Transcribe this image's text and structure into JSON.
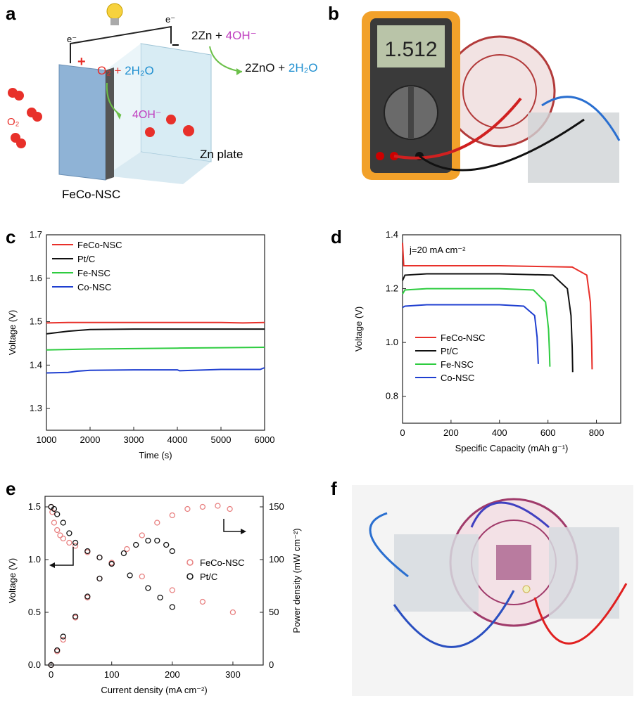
{
  "panels": {
    "a": "a",
    "b": "b",
    "c": "c",
    "d": "d",
    "e": "e",
    "f": "f"
  },
  "schematic": {
    "electron_left": "e⁻",
    "electron_right": "e⁻",
    "plus_sign": "+",
    "minus_sign": "−",
    "o2_label": "O₂",
    "cathode_reaction_part1": "O₂ + ",
    "cathode_reaction_part2": "2H₂O",
    "oh_label": "4OH⁻",
    "anode_reaction_top_part1": "2Zn + ",
    "anode_reaction_top_part2": "4OH⁻",
    "anode_reaction_bottom_part1": "2ZnO + ",
    "anode_reaction_bottom_part2": "2H₂O",
    "zn_plate_label": "Zn plate",
    "electrode_label": "FeCo-NSC"
  },
  "photo_b": {
    "multimeter_reading": "1.512"
  },
  "colors": {
    "red": "#e8302a",
    "black": "#111111",
    "green": "#2ecc40",
    "blue": "#1f3fd0",
    "pink": "#e88080",
    "purple": "#c040c0",
    "cyan": "#1f8fd0"
  },
  "chart_data": [
    {
      "id": "c",
      "type": "line",
      "xlabel": "Time (s)",
      "ylabel": "Voltage (V)",
      "xlim": [
        1000,
        6000
      ],
      "ylim": [
        1.25,
        1.7
      ],
      "xticks": [
        1000,
        2000,
        3000,
        4000,
        5000,
        6000
      ],
      "yticks": [
        1.3,
        1.4,
        1.5,
        1.6,
        1.7
      ],
      "legend_position": "top-left",
      "series": [
        {
          "name": "FeCo-NSC",
          "color": "#e8302a",
          "x": [
            1000,
            1500,
            2000,
            3000,
            4000,
            5000,
            5500,
            6000
          ],
          "y": [
            1.497,
            1.498,
            1.498,
            1.498,
            1.498,
            1.498,
            1.497,
            1.498
          ]
        },
        {
          "name": "Pt/C",
          "color": "#111111",
          "x": [
            1000,
            1500,
            2000,
            3000,
            4000,
            5000,
            6000
          ],
          "y": [
            1.472,
            1.478,
            1.482,
            1.483,
            1.483,
            1.483,
            1.483
          ]
        },
        {
          "name": "Fe-NSC",
          "color": "#2ecc40",
          "x": [
            1000,
            2000,
            3000,
            4000,
            5000,
            6000
          ],
          "y": [
            1.435,
            1.437,
            1.438,
            1.439,
            1.44,
            1.441
          ]
        },
        {
          "name": "Co-NSC",
          "color": "#1f3fd0",
          "x": [
            1000,
            1500,
            1700,
            2000,
            3000,
            4000,
            4050,
            5000,
            5900,
            6000
          ],
          "y": [
            1.382,
            1.383,
            1.386,
            1.388,
            1.389,
            1.389,
            1.387,
            1.39,
            1.39,
            1.394
          ]
        }
      ]
    },
    {
      "id": "d",
      "type": "line",
      "xlabel": "Specific Capacity (mAh g⁻¹)",
      "ylabel": "Voltage (V)",
      "annotation": "j=20 mA cm⁻²",
      "xlim": [
        0,
        900
      ],
      "ylim": [
        0.7,
        1.4
      ],
      "xticks": [
        0,
        200,
        400,
        600,
        800
      ],
      "yticks": [
        0.8,
        1.0,
        1.2,
        1.4
      ],
      "legend_position": "bottom-left",
      "series": [
        {
          "name": "FeCo-NSC",
          "color": "#e8302a",
          "x": [
            0,
            5,
            100,
            400,
            700,
            760,
            775,
            780,
            782
          ],
          "y": [
            1.37,
            1.285,
            1.285,
            1.285,
            1.28,
            1.25,
            1.15,
            1.0,
            0.9
          ]
        },
        {
          "name": "Pt/C",
          "color": "#111111",
          "x": [
            0,
            10,
            100,
            400,
            620,
            680,
            695,
            700,
            702
          ],
          "y": [
            1.23,
            1.25,
            1.255,
            1.255,
            1.25,
            1.2,
            1.1,
            0.98,
            0.89
          ]
        },
        {
          "name": "Fe-NSC",
          "color": "#2ecc40",
          "x": [
            0,
            10,
            100,
            400,
            540,
            590,
            602,
            606,
            608
          ],
          "y": [
            1.18,
            1.195,
            1.2,
            1.2,
            1.195,
            1.15,
            1.05,
            0.97,
            0.91
          ]
        },
        {
          "name": "Co-NSC",
          "color": "#1f3fd0",
          "x": [
            0,
            10,
            100,
            400,
            500,
            545,
            555,
            558,
            560
          ],
          "y": [
            1.13,
            1.135,
            1.14,
            1.14,
            1.135,
            1.1,
            1.02,
            0.96,
            0.92
          ]
        }
      ]
    },
    {
      "id": "e",
      "type": "scatter",
      "xlabel": "Current density (mA cm⁻²)",
      "ylabel": "Voltage (V)",
      "y2label": "Power density (mW cm⁻²)",
      "xlim": [
        -10,
        350
      ],
      "ylim": [
        0,
        1.6
      ],
      "y2lim": [
        0,
        160
      ],
      "xticks": [
        0,
        100,
        200,
        300
      ],
      "yticks": [
        0.0,
        0.5,
        1.0,
        1.5
      ],
      "y2ticks": [
        0,
        50,
        100,
        150
      ],
      "legend_position": "center-right",
      "series": [
        {
          "name": "FeCo-NSC",
          "color": "#e88080",
          "axis": "left",
          "x": [
            0,
            2,
            5,
            10,
            15,
            20,
            30,
            40,
            60,
            80,
            100,
            150,
            200,
            250,
            300
          ],
          "y": [
            1.5,
            1.45,
            1.35,
            1.28,
            1.23,
            1.2,
            1.16,
            1.13,
            1.07,
            1.02,
            0.97,
            0.84,
            0.71,
            0.6,
            0.5
          ]
        },
        {
          "name": "Pt/C",
          "color": "#111111",
          "axis": "left",
          "x": [
            0,
            5,
            10,
            20,
            30,
            40,
            60,
            80,
            100,
            130,
            160,
            180,
            200
          ],
          "y": [
            1.5,
            1.48,
            1.43,
            1.35,
            1.25,
            1.16,
            1.08,
            1.02,
            0.96,
            0.85,
            0.73,
            0.64,
            0.55
          ]
        },
        {
          "name": "FeCo-NSC",
          "color": "#e88080",
          "axis": "right",
          "x": [
            0,
            10,
            20,
            40,
            60,
            80,
            100,
            125,
            150,
            175,
            200,
            225,
            250,
            275,
            295
          ],
          "y": [
            0,
            13,
            24,
            45,
            64,
            82,
            97,
            110,
            123,
            135,
            142,
            148,
            150,
            151,
            148
          ]
        },
        {
          "name": "Pt/C",
          "color": "#111111",
          "axis": "right",
          "x": [
            0,
            10,
            20,
            40,
            60,
            80,
            100,
            120,
            140,
            160,
            175,
            190,
            200
          ],
          "y": [
            0,
            14,
            27,
            46,
            65,
            82,
            96,
            106,
            114,
            118,
            118,
            114,
            108
          ]
        }
      ]
    }
  ]
}
